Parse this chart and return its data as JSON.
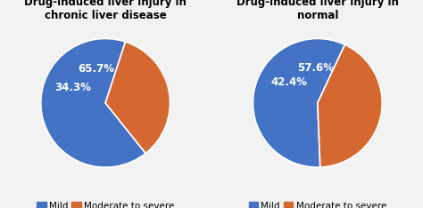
{
  "charts": [
    {
      "title": "Drug-induced liver injury in\nchronic liver disease",
      "values": [
        65.7,
        34.3
      ],
      "labels": [
        "65.7%",
        "34.3%"
      ],
      "colors": [
        "#4472C4",
        "#D46830"
      ],
      "startangle": 72,
      "label_offsets": [
        0.55,
        0.55
      ]
    },
    {
      "title": "Drug-induced liver injury in\nnormal",
      "values": [
        57.6,
        42.4
      ],
      "labels": [
        "57.6%",
        "42.4%"
      ],
      "colors": [
        "#4472C4",
        "#D46830"
      ],
      "startangle": 65,
      "label_offsets": [
        0.55,
        0.55
      ]
    }
  ],
  "legend_labels": [
    "Mild",
    "Moderate to severe"
  ],
  "legend_colors": [
    "#4472C4",
    "#D46830"
  ],
  "bg_color": "#f2f2f2",
  "title_fontsize": 8.5,
  "label_fontsize": 8.5,
  "legend_fontsize": 7.5
}
